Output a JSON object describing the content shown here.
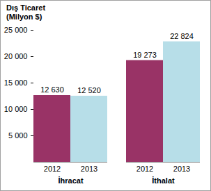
{
  "chart_data": {
    "type": "bar",
    "y_label": "Dış Ticaret\n(Milyon $)",
    "categories": [
      "İhracat",
      "İthalat"
    ],
    "series": [
      {
        "name": "2012",
        "color": "#993366",
        "values": [
          12630,
          19273
        ],
        "value_labels": [
          "12 630",
          "19 273"
        ]
      },
      {
        "name": "2013",
        "color": "#B7DEE8",
        "values": [
          12520,
          22824
        ],
        "value_labels": [
          "12 520",
          "22 824"
        ]
      }
    ],
    "ylim": [
      0,
      25000
    ],
    "yticks": [
      {
        "value": 5000,
        "label": "5 000"
      },
      {
        "value": 10000,
        "label": "10 000"
      },
      {
        "value": 15000,
        "label": "15 000"
      },
      {
        "value": 20000,
        "label": "20 000"
      },
      {
        "value": 25000,
        "label": "25 000"
      }
    ],
    "grid": false,
    "data_labels": true
  }
}
